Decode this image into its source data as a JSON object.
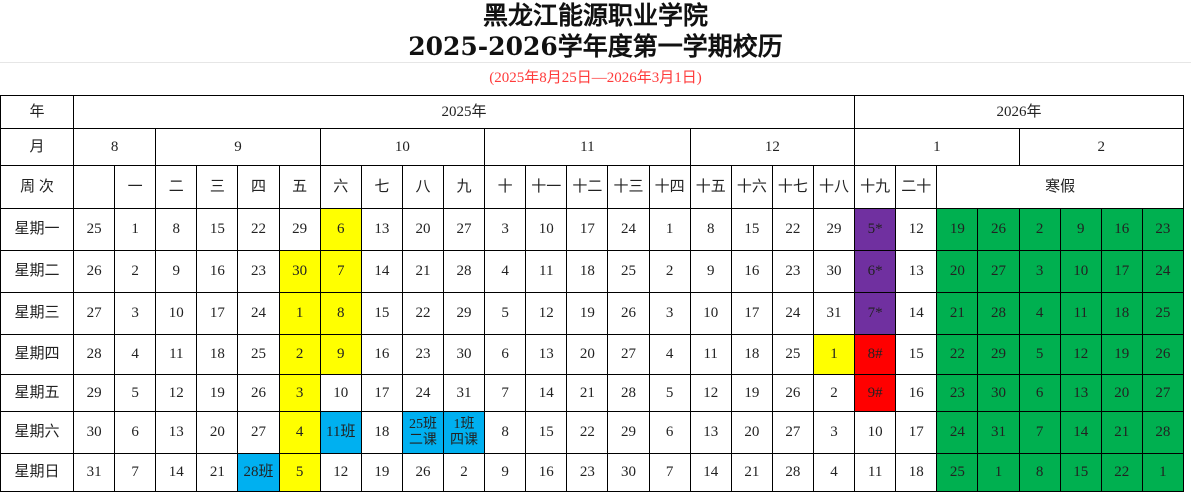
{
  "title": {
    "line1": "黑龙江能源职业学院",
    "line2": "2025-2026学年度第一学期校历",
    "range": "(2025年8月25日—2026年3月1日)"
  },
  "colors": {
    "yellow": "#ffff00",
    "purple": "#7030a0",
    "red": "#ff0000",
    "blue": "#00b0f0",
    "green": "#00b050"
  },
  "header": {
    "year_label": "年",
    "month_label": "月",
    "week_label": "周 次",
    "years": [
      {
        "label": "2025年",
        "span": 19
      },
      {
        "label": "2026年",
        "span": 8
      }
    ],
    "months": [
      {
        "label": "8",
        "span": 2
      },
      {
        "label": "9",
        "span": 4
      },
      {
        "label": "10",
        "span": 4
      },
      {
        "label": "11",
        "span": 5
      },
      {
        "label": "12",
        "span": 4
      },
      {
        "label": "1",
        "span": 4
      },
      {
        "label": "2",
        "span": 4
      }
    ],
    "weeks": [
      "",
      "一",
      "二",
      "三",
      "四",
      "五",
      "六",
      "七",
      "八",
      "九",
      "十",
      "十一",
      "十二",
      "十三",
      "十四",
      "十五",
      "十六",
      "十七",
      "十八",
      "十九",
      "二十"
    ],
    "winter_break": "寒假"
  },
  "weekdays": [
    "星期一",
    "星期二",
    "星期三",
    "星期四",
    "星期五",
    "星期六",
    "星期日"
  ],
  "columns": [
    [
      "25",
      "26",
      "27",
      "28",
      "29",
      "30",
      "31"
    ],
    [
      "1",
      "2",
      "3",
      "4",
      "5",
      "6",
      "7"
    ],
    [
      "8",
      "9",
      "10",
      "11",
      "12",
      "13",
      "14"
    ],
    [
      "15",
      "16",
      "17",
      "18",
      "19",
      "20",
      "21"
    ],
    [
      "22",
      "23",
      "24",
      "25",
      "26",
      "27",
      "28班"
    ],
    [
      "29",
      "30",
      "1",
      "2",
      "3",
      "4",
      "5"
    ],
    [
      "6",
      "7",
      "8",
      "9",
      "10",
      "11班",
      "12"
    ],
    [
      "13",
      "14",
      "15",
      "16",
      "17",
      "18",
      "19"
    ],
    [
      "20",
      "21",
      "22",
      "23",
      "24",
      "25班\n二课",
      "26"
    ],
    [
      "27",
      "28",
      "29",
      "30",
      "31",
      "1班\n四课",
      "2"
    ],
    [
      "3",
      "4",
      "5",
      "6",
      "7",
      "8",
      "9"
    ],
    [
      "10",
      "11",
      "12",
      "13",
      "14",
      "15",
      "16"
    ],
    [
      "17",
      "18",
      "19",
      "20",
      "21",
      "22",
      "23"
    ],
    [
      "24",
      "25",
      "26",
      "27",
      "28",
      "29",
      "30"
    ],
    [
      "1",
      "2",
      "3",
      "4",
      "5",
      "6",
      "7"
    ],
    [
      "8",
      "9",
      "10",
      "11",
      "12",
      "13",
      "14"
    ],
    [
      "15",
      "16",
      "17",
      "18",
      "19",
      "20",
      "21"
    ],
    [
      "22",
      "23",
      "24",
      "25",
      "26",
      "27",
      "28"
    ],
    [
      "29",
      "30",
      "31",
      "1",
      "2",
      "3",
      "4"
    ],
    [
      "5*",
      "6*",
      "7*",
      "8#",
      "9#",
      "10",
      "11"
    ],
    [
      "12",
      "13",
      "14",
      "15",
      "16",
      "17",
      "18"
    ],
    [
      "19",
      "20",
      "21",
      "22",
      "23",
      "24",
      "25"
    ],
    [
      "26",
      "27",
      "28",
      "29",
      "30",
      "31",
      "1"
    ],
    [
      "2",
      "3",
      "4",
      "5",
      "6",
      "7",
      "8"
    ],
    [
      "9",
      "10",
      "11",
      "12",
      "13",
      "14",
      "15"
    ],
    [
      "16",
      "17",
      "18",
      "19",
      "20",
      "21",
      "22"
    ],
    [
      "23",
      "24",
      "25",
      "26",
      "27",
      "28",
      "1"
    ]
  ],
  "highlights": {
    "yellow": [
      "5-1",
      "5-2",
      "5-3",
      "5-4",
      "5-5",
      "5-6",
      "6-0",
      "6-1",
      "6-2",
      "6-3",
      "18-3"
    ],
    "purple": [
      "19-0",
      "19-1",
      "19-2"
    ],
    "red": [
      "19-3",
      "19-4"
    ],
    "blue": [
      "4-6",
      "6-5",
      "8-5",
      "9-5"
    ],
    "green_columns": [
      21,
      22,
      23,
      24,
      25,
      26
    ]
  }
}
